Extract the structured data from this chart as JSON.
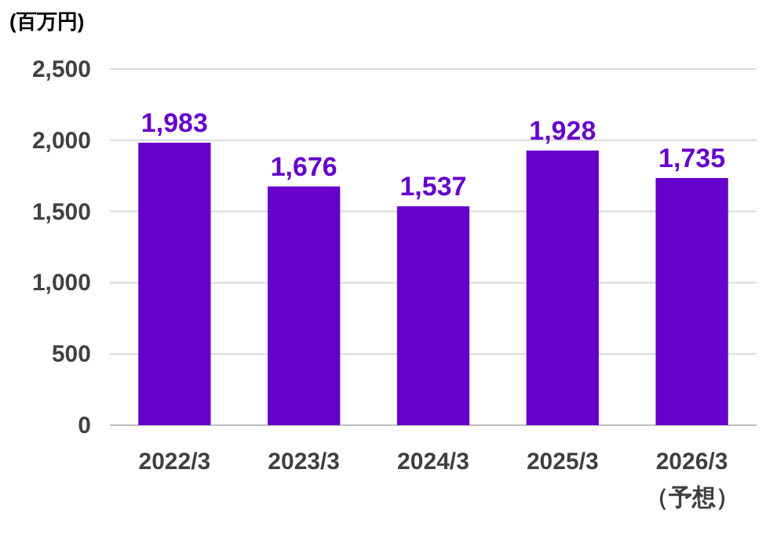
{
  "chart_data": {
    "type": "bar",
    "ylabel": "(百万円)",
    "categories": [
      "2022/3",
      "2023/3",
      "2024/3",
      "2025/3",
      "2026/3\n（予想）"
    ],
    "values": [
      1983,
      1676,
      1537,
      1928,
      1735
    ],
    "value_labels": [
      "1,983",
      "1,676",
      "1,537",
      "1,928",
      "1,735"
    ],
    "color": "#6600cc",
    "ylim": [
      0,
      2500
    ],
    "yticks": [
      {
        "value": 0,
        "label": "0"
      },
      {
        "value": 500,
        "label": "500"
      },
      {
        "value": 1000,
        "label": "1,000"
      },
      {
        "value": 1500,
        "label": "1,500"
      },
      {
        "value": 2000,
        "label": "2,000"
      },
      {
        "value": 2500,
        "label": "2,500"
      }
    ],
    "grid": "y"
  }
}
